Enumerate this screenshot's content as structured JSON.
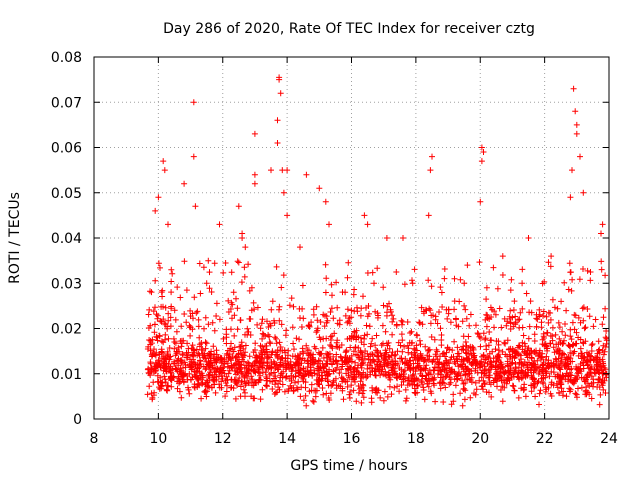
{
  "chart_data": {
    "type": "scatter",
    "title": "Day 286 of 2020, Rate Of TEC Index for receiver cztg",
    "xlabel": "GPS time / hours",
    "ylabel": "ROTI / TECUs",
    "xlim": [
      8,
      24
    ],
    "ylim": [
      0,
      0.08
    ],
    "x_ticks": [
      "8",
      "10",
      "12",
      "14",
      "16",
      "18",
      "20",
      "22",
      "24"
    ],
    "y_ticks": [
      "0",
      "0.01",
      "0.02",
      "0.03",
      "0.04",
      "0.05",
      "0.06",
      "0.07",
      "0.08"
    ],
    "grid": true,
    "marker": "+",
    "color": "#ff0000",
    "x_range_of_data": [
      9.65,
      23.95
    ],
    "series": [
      {
        "name": "ROTI",
        "description_points": [
          [
            9.9,
            0.046
          ],
          [
            10.0,
            0.049
          ],
          [
            10.15,
            0.057
          ],
          [
            10.2,
            0.055
          ],
          [
            10.3,
            0.043
          ],
          [
            10.8,
            0.052
          ],
          [
            11.1,
            0.07
          ],
          [
            11.1,
            0.058
          ],
          [
            11.15,
            0.047
          ],
          [
            11.9,
            0.043
          ],
          [
            12.5,
            0.047
          ],
          [
            12.6,
            0.04
          ],
          [
            12.6,
            0.041
          ],
          [
            13.0,
            0.063
          ],
          [
            13.0,
            0.054
          ],
          [
            13.0,
            0.052
          ],
          [
            13.5,
            0.055
          ],
          [
            13.75,
            0.0755
          ],
          [
            13.75,
            0.075
          ],
          [
            13.8,
            0.072
          ],
          [
            13.7,
            0.066
          ],
          [
            13.7,
            0.061
          ],
          [
            13.85,
            0.055
          ],
          [
            13.9,
            0.05
          ],
          [
            14.0,
            0.055
          ],
          [
            14.0,
            0.045
          ],
          [
            14.6,
            0.054
          ],
          [
            15.0,
            0.051
          ],
          [
            15.2,
            0.048
          ],
          [
            15.3,
            0.043
          ],
          [
            16.4,
            0.045
          ],
          [
            16.5,
            0.043
          ],
          [
            17.1,
            0.04
          ],
          [
            17.6,
            0.04
          ],
          [
            18.4,
            0.045
          ],
          [
            18.5,
            0.058
          ],
          [
            18.45,
            0.055
          ],
          [
            20.0,
            0.048
          ],
          [
            20.05,
            0.06
          ],
          [
            20.1,
            0.059
          ],
          [
            20.05,
            0.057
          ],
          [
            20.7,
            0.036
          ],
          [
            21.5,
            0.04
          ],
          [
            22.8,
            0.049
          ],
          [
            22.85,
            0.055
          ],
          [
            22.9,
            0.073
          ],
          [
            22.95,
            0.068
          ],
          [
            23.0,
            0.065
          ],
          [
            23.0,
            0.063
          ],
          [
            23.1,
            0.058
          ],
          [
            23.2,
            0.05
          ],
          [
            23.8,
            0.043
          ],
          [
            23.75,
            0.041
          ],
          [
            22.2,
            0.036
          ],
          [
            21.3,
            0.03
          ],
          [
            19.6,
            0.034
          ],
          [
            19.2,
            0.031
          ],
          [
            19.5,
            0.03
          ],
          [
            16.7,
            0.03
          ],
          [
            17.9,
            0.03
          ],
          [
            15.8,
            0.028
          ],
          [
            14.4,
            0.038
          ],
          [
            12.7,
            0.038
          ],
          [
            11.5,
            0.03
          ],
          [
            10.4,
            0.033
          ]
        ],
        "dense_band": {
          "y_center": 0.01,
          "y_spread": [
            0.002,
            0.025
          ],
          "x_from": 9.65,
          "x_to": 23.95
        }
      }
    ]
  }
}
